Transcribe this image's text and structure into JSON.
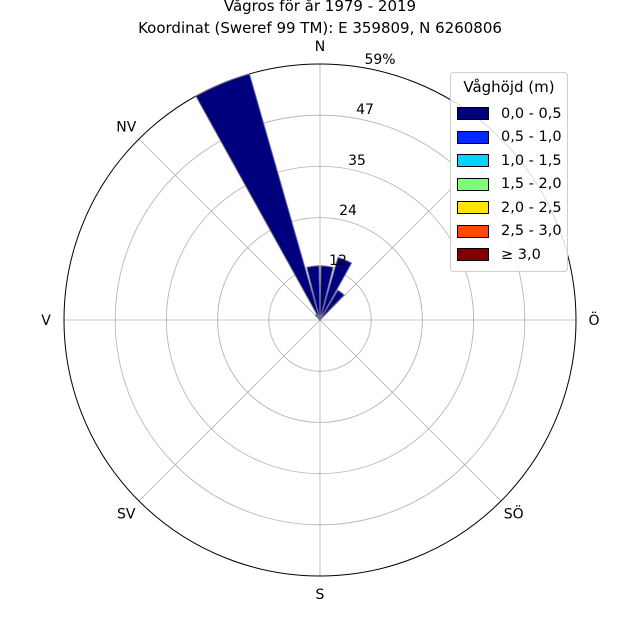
{
  "chart_data": {
    "type": "polar-bar",
    "title": "Vågros för år 1979 - 2019",
    "subtitle": "Koordinat (Sweref 99 TM): E 359809, N 6260806",
    "directions": [
      {
        "label": "N",
        "angle_deg": 0
      },
      {
        "label": "NV",
        "angle_deg": 315
      },
      {
        "label": "V",
        "angle_deg": 270
      },
      {
        "label": "SV",
        "angle_deg": 225
      },
      {
        "label": "S",
        "angle_deg": 180
      },
      {
        "label": "SÖ",
        "angle_deg": 135
      },
      {
        "label": "Ö",
        "angle_deg": 90
      }
    ],
    "radial_ticks": [
      "12",
      "24",
      "35",
      "47",
      "59%"
    ],
    "radial_max": 59,
    "legend": {
      "title": "Våghöjd (m)",
      "items": [
        {
          "label": "0,0 - 0,5",
          "color": "#00007f"
        },
        {
          "label": "0,5 - 1,0",
          "color": "#0028ff"
        },
        {
          "label": "1,0 - 1,5",
          "color": "#00d4ff"
        },
        {
          "label": "1,5 - 2,0",
          "color": "#7dff7a"
        },
        {
          "label": "2,0 - 2,5",
          "color": "#ffe500"
        },
        {
          "label": "2,5 - 3,0",
          "color": "#ff4800"
        },
        {
          "label": "≥ 3,0",
          "color": "#7f0000"
        }
      ]
    },
    "series": [
      {
        "name": "0,0 - 0,5",
        "color": "#00007f",
        "bars": [
          {
            "direction_deg": 337.5,
            "value": 59
          },
          {
            "direction_deg": 352.5,
            "value": 12.5
          },
          {
            "direction_deg": 7.5,
            "value": 12.5
          },
          {
            "direction_deg": 22.5,
            "value": 15
          },
          {
            "direction_deg": 37.5,
            "value": 8
          },
          {
            "direction_deg": 322.5,
            "value": 1.5
          }
        ]
      }
    ],
    "grid": true
  }
}
